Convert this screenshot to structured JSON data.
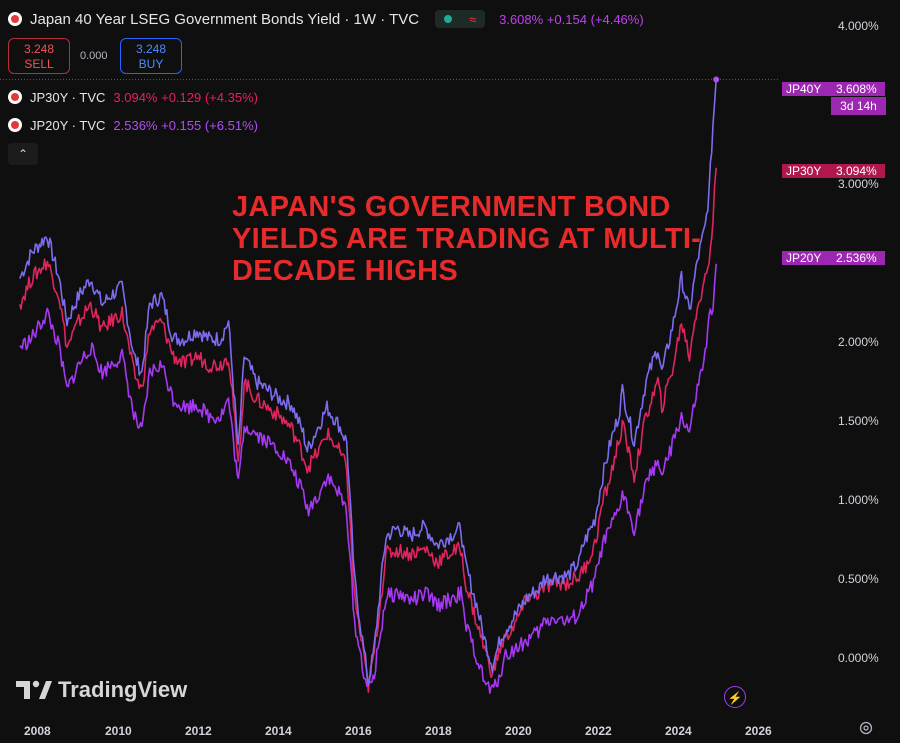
{
  "header": {
    "title": "Japan 40 Year LSEG Government Bonds Yield · 1W · TVC",
    "market_icon": "≈",
    "last": "3.608%",
    "change": "+0.154 (+4.46%)"
  },
  "trade": {
    "sell_price": "3.248",
    "sell_label": "SELL",
    "spread": "0.000",
    "buy_price": "3.248",
    "buy_label": "BUY"
  },
  "legend": [
    {
      "name": "JP30Y · TVC",
      "value": "3.094%",
      "change": "+0.129 (+4.35%)",
      "color": "#e91e63"
    },
    {
      "name": "JP20Y · TVC",
      "value": "2.536%",
      "change": "+0.155 (+6.51%)",
      "color": "#b14ef0"
    }
  ],
  "collapse_icon": "⌃",
  "annotation": "JAPAN'S GOVERNMENT BOND YIELDS ARE TRADING AT MULTI-DECADE HIGHS",
  "tags": [
    {
      "name": "JP40Y",
      "value": "3.608%",
      "countdown": "3d 14h",
      "color": "#9c27b0"
    },
    {
      "name": "JP30Y",
      "value": "3.094%",
      "color": "#b0174f"
    },
    {
      "name": "JP20Y",
      "value": "2.536%",
      "color": "#9c27b0"
    }
  ],
  "brand": "TradingView",
  "chart_data": {
    "type": "line",
    "x_ticks": [
      "2008",
      "2010",
      "2012",
      "2014",
      "2016",
      "2018",
      "2020",
      "2022",
      "2024",
      "2026"
    ],
    "y_ticks": [
      "0.000%",
      "0.500%",
      "1.000%",
      "1.500%",
      "2.000%",
      "3.000%",
      "4.000%"
    ],
    "ylim": [
      -0.03,
      4.07
    ],
    "xlim": [
      2007.2,
      2027.0
    ],
    "series": [
      {
        "name": "JP40Y",
        "color": "#7b6cf0",
        "points": [
          [
            2007.7,
            2.45
          ],
          [
            2008.0,
            2.6
          ],
          [
            2008.4,
            2.7
          ],
          [
            2008.7,
            2.45
          ],
          [
            2008.9,
            2.2
          ],
          [
            2009.2,
            2.35
          ],
          [
            2009.5,
            2.45
          ],
          [
            2009.8,
            2.3
          ],
          [
            2010.0,
            2.35
          ],
          [
            2010.3,
            2.4
          ],
          [
            2010.6,
            2.0
          ],
          [
            2010.8,
            1.9
          ],
          [
            2011.0,
            2.3
          ],
          [
            2011.3,
            2.35
          ],
          [
            2011.6,
            2.1
          ],
          [
            2011.9,
            2.1
          ],
          [
            2012.2,
            2.15
          ],
          [
            2012.5,
            2.1
          ],
          [
            2012.8,
            2.1
          ],
          [
            2013.0,
            2.2
          ],
          [
            2013.1,
            1.9
          ],
          [
            2013.25,
            1.45
          ],
          [
            2013.4,
            2.0
          ],
          [
            2013.7,
            1.85
          ],
          [
            2014.0,
            1.8
          ],
          [
            2014.3,
            1.75
          ],
          [
            2014.6,
            1.72
          ],
          [
            2014.9,
            1.55
          ],
          [
            2015.0,
            1.45
          ],
          [
            2015.3,
            1.6
          ],
          [
            2015.5,
            1.7
          ],
          [
            2015.8,
            1.6
          ],
          [
            2016.0,
            1.5
          ],
          [
            2016.2,
            0.7
          ],
          [
            2016.4,
            0.35
          ],
          [
            2016.55,
            0.1
          ],
          [
            2016.7,
            0.3
          ],
          [
            2016.9,
            0.75
          ],
          [
            2017.0,
            0.95
          ],
          [
            2017.3,
            1.0
          ],
          [
            2017.6,
            0.95
          ],
          [
            2017.9,
            1.0
          ],
          [
            2018.0,
            1.0
          ],
          [
            2018.3,
            0.9
          ],
          [
            2018.6,
            0.95
          ],
          [
            2018.9,
            1.0
          ],
          [
            2019.0,
            0.8
          ],
          [
            2019.3,
            0.55
          ],
          [
            2019.5,
            0.35
          ],
          [
            2019.7,
            0.2
          ],
          [
            2019.9,
            0.35
          ],
          [
            2020.0,
            0.4
          ],
          [
            2020.3,
            0.5
          ],
          [
            2020.6,
            0.6
          ],
          [
            2020.9,
            0.65
          ],
          [
            2021.0,
            0.7
          ],
          [
            2021.3,
            0.72
          ],
          [
            2021.6,
            0.72
          ],
          [
            2021.9,
            0.8
          ],
          [
            2022.0,
            0.9
          ],
          [
            2022.3,
            1.05
          ],
          [
            2022.5,
            1.3
          ],
          [
            2022.7,
            1.5
          ],
          [
            2022.9,
            1.65
          ],
          [
            2023.0,
            1.8
          ],
          [
            2023.3,
            1.5
          ],
          [
            2023.6,
            1.85
          ],
          [
            2023.9,
            2.05
          ],
          [
            2024.0,
            1.9
          ],
          [
            2024.3,
            2.2
          ],
          [
            2024.5,
            2.45
          ],
          [
            2024.7,
            2.25
          ],
          [
            2024.9,
            2.55
          ],
          [
            2025.0,
            2.65
          ],
          [
            2025.1,
            2.75
          ],
          [
            2025.2,
            2.95
          ],
          [
            2025.3,
            3.35
          ],
          [
            2025.38,
            3.608
          ]
        ]
      },
      {
        "name": "JP30Y",
        "color": "#e0245e",
        "points": [
          [
            2007.7,
            2.3
          ],
          [
            2008.0,
            2.45
          ],
          [
            2008.4,
            2.55
          ],
          [
            2008.7,
            2.35
          ],
          [
            2008.9,
            2.05
          ],
          [
            2009.2,
            2.2
          ],
          [
            2009.5,
            2.3
          ],
          [
            2009.8,
            2.15
          ],
          [
            2010.0,
            2.2
          ],
          [
            2010.3,
            2.25
          ],
          [
            2010.6,
            1.9
          ],
          [
            2010.8,
            1.8
          ],
          [
            2011.0,
            2.15
          ],
          [
            2011.3,
            2.2
          ],
          [
            2011.6,
            2.0
          ],
          [
            2011.9,
            1.95
          ],
          [
            2012.2,
            2.0
          ],
          [
            2012.5,
            1.95
          ],
          [
            2012.8,
            1.95
          ],
          [
            2013.0,
            2.0
          ],
          [
            2013.1,
            1.8
          ],
          [
            2013.25,
            1.35
          ],
          [
            2013.4,
            1.85
          ],
          [
            2013.7,
            1.75
          ],
          [
            2014.0,
            1.7
          ],
          [
            2014.3,
            1.65
          ],
          [
            2014.6,
            1.58
          ],
          [
            2014.9,
            1.42
          ],
          [
            2015.0,
            1.35
          ],
          [
            2015.3,
            1.45
          ],
          [
            2015.5,
            1.55
          ],
          [
            2015.8,
            1.45
          ],
          [
            2016.0,
            1.35
          ],
          [
            2016.2,
            0.6
          ],
          [
            2016.4,
            0.3
          ],
          [
            2016.55,
            0.08
          ],
          [
            2016.7,
            0.28
          ],
          [
            2016.9,
            0.65
          ],
          [
            2017.0,
            0.85
          ],
          [
            2017.3,
            0.87
          ],
          [
            2017.6,
            0.85
          ],
          [
            2017.9,
            0.87
          ],
          [
            2018.0,
            0.88
          ],
          [
            2018.3,
            0.8
          ],
          [
            2018.6,
            0.85
          ],
          [
            2018.9,
            0.88
          ],
          [
            2019.0,
            0.7
          ],
          [
            2019.3,
            0.45
          ],
          [
            2019.5,
            0.3
          ],
          [
            2019.7,
            0.15
          ],
          [
            2019.9,
            0.3
          ],
          [
            2020.0,
            0.35
          ],
          [
            2020.3,
            0.45
          ],
          [
            2020.6,
            0.6
          ],
          [
            2020.9,
            0.62
          ],
          [
            2021.0,
            0.65
          ],
          [
            2021.3,
            0.68
          ],
          [
            2021.6,
            0.68
          ],
          [
            2021.9,
            0.72
          ],
          [
            2022.0,
            0.75
          ],
          [
            2022.3,
            0.9
          ],
          [
            2022.5,
            1.15
          ],
          [
            2022.7,
            1.3
          ],
          [
            2022.9,
            1.5
          ],
          [
            2023.0,
            1.6
          ],
          [
            2023.3,
            1.3
          ],
          [
            2023.6,
            1.65
          ],
          [
            2023.9,
            1.85
          ],
          [
            2024.0,
            1.7
          ],
          [
            2024.3,
            1.95
          ],
          [
            2024.5,
            2.2
          ],
          [
            2024.7,
            2.0
          ],
          [
            2024.9,
            2.3
          ],
          [
            2025.0,
            2.35
          ],
          [
            2025.1,
            2.45
          ],
          [
            2025.2,
            2.55
          ],
          [
            2025.3,
            2.8
          ],
          [
            2025.38,
            3.094
          ]
        ]
      },
      {
        "name": "JP20Y",
        "color": "#a638f5",
        "points": [
          [
            2007.7,
            2.05
          ],
          [
            2008.0,
            2.1
          ],
          [
            2008.4,
            2.25
          ],
          [
            2008.7,
            2.05
          ],
          [
            2008.9,
            1.8
          ],
          [
            2009.2,
            1.95
          ],
          [
            2009.5,
            2.05
          ],
          [
            2009.8,
            1.9
          ],
          [
            2010.0,
            1.95
          ],
          [
            2010.3,
            2.0
          ],
          [
            2010.6,
            1.65
          ],
          [
            2010.8,
            1.55
          ],
          [
            2011.0,
            1.9
          ],
          [
            2011.3,
            1.95
          ],
          [
            2011.6,
            1.75
          ],
          [
            2011.9,
            1.7
          ],
          [
            2012.2,
            1.72
          ],
          [
            2012.5,
            1.65
          ],
          [
            2012.8,
            1.65
          ],
          [
            2013.0,
            1.75
          ],
          [
            2013.1,
            1.55
          ],
          [
            2013.25,
            1.25
          ],
          [
            2013.4,
            1.6
          ],
          [
            2013.7,
            1.55
          ],
          [
            2014.0,
            1.5
          ],
          [
            2014.3,
            1.45
          ],
          [
            2014.6,
            1.35
          ],
          [
            2014.9,
            1.2
          ],
          [
            2015.0,
            1.1
          ],
          [
            2015.3,
            1.2
          ],
          [
            2015.5,
            1.3
          ],
          [
            2015.8,
            1.2
          ],
          [
            2016.0,
            1.1
          ],
          [
            2016.2,
            0.45
          ],
          [
            2016.4,
            0.2
          ],
          [
            2016.55,
            0.05
          ],
          [
            2016.7,
            0.15
          ],
          [
            2016.9,
            0.45
          ],
          [
            2017.0,
            0.6
          ],
          [
            2017.3,
            0.62
          ],
          [
            2017.6,
            0.58
          ],
          [
            2017.9,
            0.6
          ],
          [
            2018.0,
            0.62
          ],
          [
            2018.3,
            0.55
          ],
          [
            2018.6,
            0.58
          ],
          [
            2018.9,
            0.62
          ],
          [
            2019.0,
            0.45
          ],
          [
            2019.3,
            0.25
          ],
          [
            2019.5,
            0.1
          ],
          [
            2019.7,
            0.05
          ],
          [
            2019.9,
            0.15
          ],
          [
            2020.0,
            0.25
          ],
          [
            2020.3,
            0.3
          ],
          [
            2020.6,
            0.35
          ],
          [
            2020.9,
            0.4
          ],
          [
            2021.0,
            0.45
          ],
          [
            2021.3,
            0.48
          ],
          [
            2021.6,
            0.45
          ],
          [
            2021.9,
            0.5
          ],
          [
            2022.0,
            0.55
          ],
          [
            2022.3,
            0.7
          ],
          [
            2022.5,
            0.9
          ],
          [
            2022.7,
            1.0
          ],
          [
            2022.9,
            1.1
          ],
          [
            2023.0,
            1.2
          ],
          [
            2023.3,
            1.0
          ],
          [
            2023.6,
            1.25
          ],
          [
            2023.9,
            1.4
          ],
          [
            2024.0,
            1.3
          ],
          [
            2024.3,
            1.5
          ],
          [
            2024.5,
            1.65
          ],
          [
            2024.7,
            1.55
          ],
          [
            2024.9,
            1.8
          ],
          [
            2025.0,
            1.9
          ],
          [
            2025.1,
            2.0
          ],
          [
            2025.2,
            2.2
          ],
          [
            2025.3,
            2.3
          ],
          [
            2025.38,
            2.536
          ]
        ]
      }
    ]
  }
}
